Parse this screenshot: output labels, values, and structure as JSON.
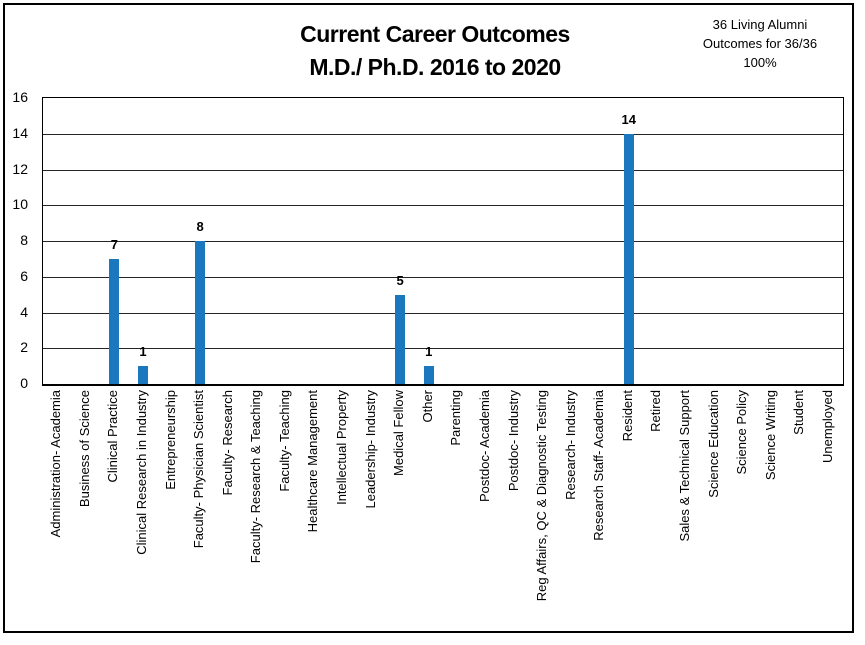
{
  "header": {
    "title_line1": "Current Career Outcomes",
    "title_line2": "M.D./ Ph.D. 2016 to 2020",
    "annotation_line1": "36 Living Alumni",
    "annotation_line2": "Outcomes for 36/36",
    "annotation_line3": "100%"
  },
  "chart_data": {
    "type": "bar",
    "title": "Current Career Outcomes M.D./ Ph.D. 2016 to 2020",
    "annotation": "36 Living Alumni Outcomes for 36/36 100%",
    "categories": [
      "Administration- Academia",
      "Business of Science",
      "Clinical Practice",
      "Clinical Research in Industry",
      "Entrepreneurship",
      "Faculty- Physician Scientist",
      "Faculty- Research",
      "Faculty- Research & Teaching",
      "Faculty- Teaching",
      "Healthcare Management",
      "Intellectual Property",
      "Leadership- Industry",
      "Medical Fellow",
      "Other",
      "Parenting",
      "Postdoc- Academia",
      "Postdoc- Industry",
      "Reg Affairs, QC & Diagnostic Testing",
      "Research- Industry",
      "Research Staff- Academia",
      "Resident",
      "Retired",
      "Sales & Technical Support",
      "Science Education",
      "Science Policy",
      "Science Writing",
      "Student",
      "Unemployed"
    ],
    "values": [
      0,
      0,
      7,
      1,
      0,
      8,
      0,
      0,
      0,
      0,
      0,
      0,
      5,
      1,
      0,
      0,
      0,
      0,
      0,
      0,
      14,
      0,
      0,
      0,
      0,
      0,
      0,
      0
    ],
    "xlabel": "",
    "ylabel": "",
    "ylim": [
      0,
      16
    ],
    "yticks": [
      0,
      2,
      4,
      6,
      8,
      10,
      12,
      14,
      16
    ],
    "grid": true,
    "legend_position": "none",
    "bar_color": "#1B78BE",
    "data_labels": "above non-zero bars"
  }
}
